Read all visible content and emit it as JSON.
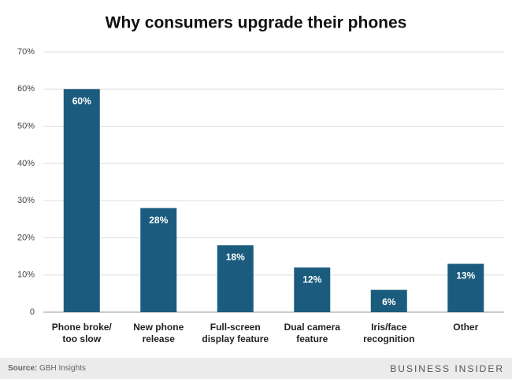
{
  "chart_data": {
    "type": "bar",
    "title": "Why consumers upgrade their phones",
    "categories": [
      "Phone broke/\ntoo slow",
      "New phone\nrelease",
      "Full-screen\ndisplay feature",
      "Dual camera\nfeature",
      "Iris/face\nrecognition",
      "Other"
    ],
    "values": [
      60,
      28,
      18,
      12,
      6,
      13
    ],
    "value_labels": [
      "60%",
      "28%",
      "18%",
      "12%",
      "6%",
      "13%"
    ],
    "color": "#1b5c7e",
    "ylim": [
      0,
      70
    ],
    "yticks": [
      0,
      {
        "value": 10,
        "label": "10%"
      },
      {
        "value": 20,
        "label": "20%"
      },
      {
        "value": 30,
        "label": "30%"
      },
      {
        "value": 40,
        "label": "40%"
      },
      {
        "value": 50,
        "label": "50%"
      },
      {
        "value": 60,
        "label": "60%"
      },
      {
        "value": 70,
        "label": "70%"
      }
    ],
    "grid": true,
    "source_label": "Source:",
    "source": "GBH Insights",
    "brand": "BUSINESS INSIDER"
  }
}
